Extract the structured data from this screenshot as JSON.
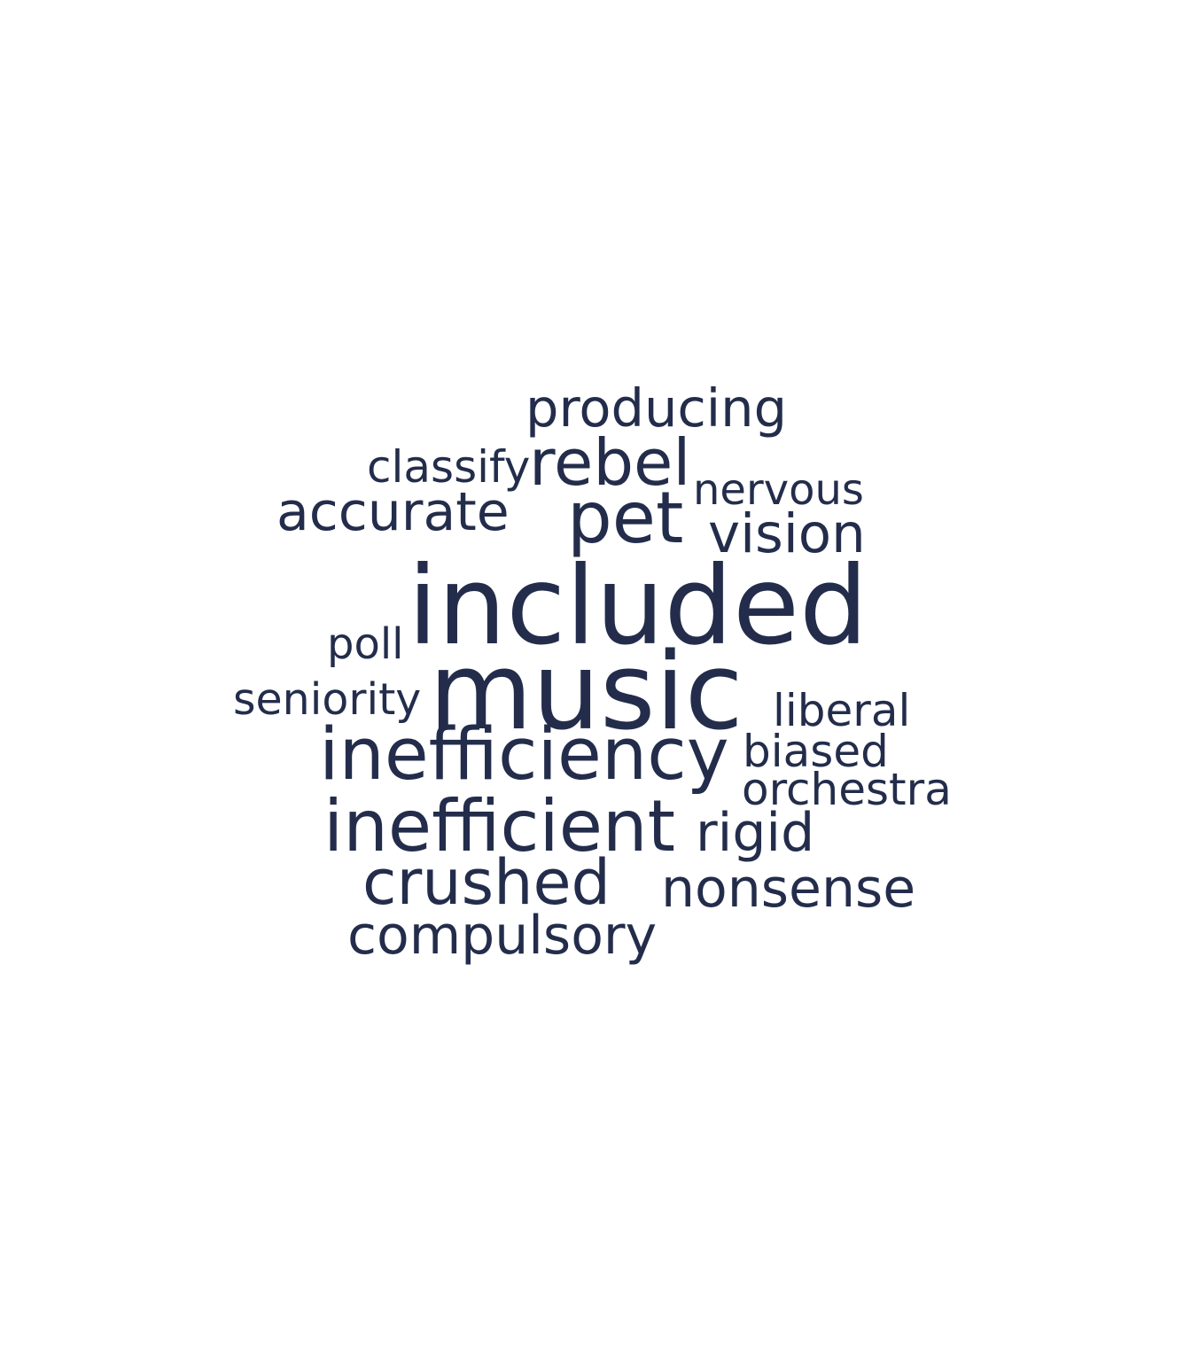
{
  "word_cloud": {
    "color": "#232d4b",
    "words": [
      {
        "text": "producing"
      },
      {
        "text": "classify"
      },
      {
        "text": "rebel"
      },
      {
        "text": "nervous"
      },
      {
        "text": "accurate"
      },
      {
        "text": "pet"
      },
      {
        "text": "vision"
      },
      {
        "text": "included"
      },
      {
        "text": "poll"
      },
      {
        "text": "music"
      },
      {
        "text": "seniority"
      },
      {
        "text": "liberal"
      },
      {
        "text": "inefficiency"
      },
      {
        "text": "biased"
      },
      {
        "text": "orchestra"
      },
      {
        "text": "inefficient"
      },
      {
        "text": "rigid"
      },
      {
        "text": "crushed"
      },
      {
        "text": "nonsense"
      },
      {
        "text": "compulsory"
      }
    ]
  }
}
